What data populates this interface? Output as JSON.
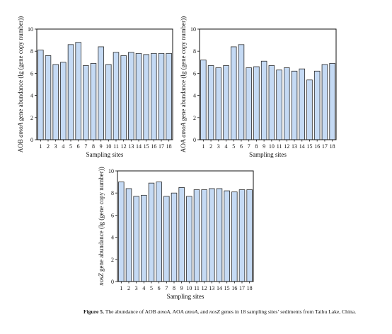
{
  "chart_data": [
    {
      "type": "bar",
      "categories": [
        "1",
        "2",
        "3",
        "4",
        "5",
        "6",
        "7",
        "8",
        "9",
        "10",
        "11",
        "12",
        "13",
        "14",
        "15",
        "16",
        "17",
        "18"
      ],
      "values": [
        8.1,
        7.6,
        6.8,
        7.0,
        8.6,
        8.8,
        6.7,
        6.9,
        8.4,
        6.8,
        7.9,
        7.6,
        7.9,
        7.8,
        7.7,
        7.8,
        7.8,
        7.8
      ],
      "xlabel": "Sampling sites",
      "ylabel_parts": [
        "AOB ",
        "amoA",
        " gene abundance (lg (gene copy number))"
      ],
      "ylim": [
        0,
        10
      ],
      "yticks": [
        "0",
        "2",
        "4",
        "6",
        "8",
        "10"
      ],
      "bar_color": "#c5daf4",
      "bar_stroke": "#2b2b2b"
    },
    {
      "type": "bar",
      "categories": [
        "1",
        "2",
        "3",
        "4",
        "5",
        "6",
        "7",
        "8",
        "9",
        "10",
        "11",
        "12",
        "13",
        "14",
        "15",
        "16",
        "17",
        "18"
      ],
      "values": [
        7.2,
        6.7,
        6.5,
        6.7,
        8.4,
        8.6,
        6.5,
        6.6,
        7.1,
        6.7,
        6.3,
        6.5,
        6.2,
        6.4,
        5.4,
        6.2,
        6.8,
        6.9
      ],
      "xlabel": "Sampling sites",
      "ylabel_parts": [
        "AOA ",
        "amoA",
        " gene abundance (lg (gene copy number))"
      ],
      "ylim": [
        0,
        10
      ],
      "yticks": [
        "0",
        "2",
        "4",
        "6",
        "8",
        "10"
      ],
      "bar_color": "#c5daf4",
      "bar_stroke": "#2b2b2b"
    },
    {
      "type": "bar",
      "categories": [
        "1",
        "2",
        "3",
        "4",
        "5",
        "6",
        "7",
        "8",
        "9",
        "10",
        "11",
        "12",
        "13",
        "14",
        "15",
        "16",
        "17",
        "18"
      ],
      "values": [
        9.0,
        8.4,
        7.7,
        7.8,
        8.9,
        9.0,
        7.7,
        8.0,
        8.5,
        7.7,
        8.3,
        8.3,
        8.4,
        8.4,
        8.2,
        8.1,
        8.3,
        8.3
      ],
      "xlabel": "Sampling sites",
      "ylabel_parts": [
        "nosZ",
        " gene abundance (lg (gene copy number))"
      ],
      "ylim": [
        0,
        10
      ],
      "yticks": [
        "0",
        "2",
        "4",
        "6",
        "8",
        "10"
      ],
      "bar_color": "#c5daf4",
      "bar_stroke": "#2b2b2b"
    }
  ],
  "caption": {
    "label": "Figure 5.",
    "t1": " The abundance of AOB ",
    "i1": "amoA",
    "t2": ", AOA ",
    "i2": "amoA",
    "t3": ", and ",
    "i3": "nosZ",
    "t4": " genes in 18 sampling sites’ sediments from Taihu Lake, China."
  }
}
